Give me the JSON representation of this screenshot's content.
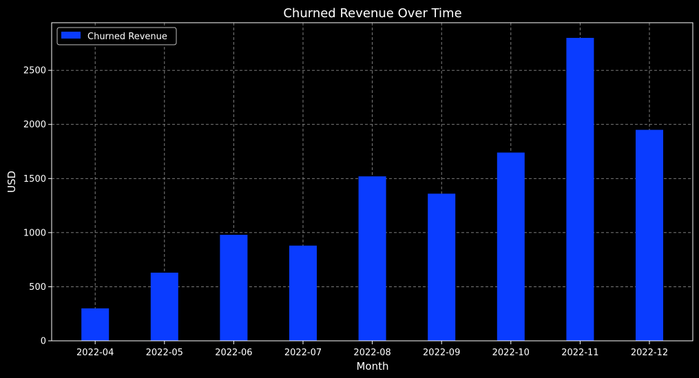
{
  "chart_data": {
    "type": "bar",
    "title": "Churned Revenue Over Time",
    "xlabel": "Month",
    "ylabel": "USD",
    "categories": [
      "2022-04",
      "2022-05",
      "2022-06",
      "2022-07",
      "2022-08",
      "2022-09",
      "2022-10",
      "2022-11",
      "2022-12"
    ],
    "series": [
      {
        "name": "Churned Revenue",
        "values": [
          300,
          630,
          980,
          880,
          1520,
          1360,
          1740,
          2800,
          1950
        ],
        "color": "#0a3cff"
      }
    ],
    "ylim": [
      0,
      2940
    ],
    "yticks": [
      0,
      500,
      1000,
      1500,
      2000,
      2500
    ],
    "grid": true,
    "legend_position": "top-left",
    "background": "#000000",
    "foreground": "#ffffff"
  }
}
